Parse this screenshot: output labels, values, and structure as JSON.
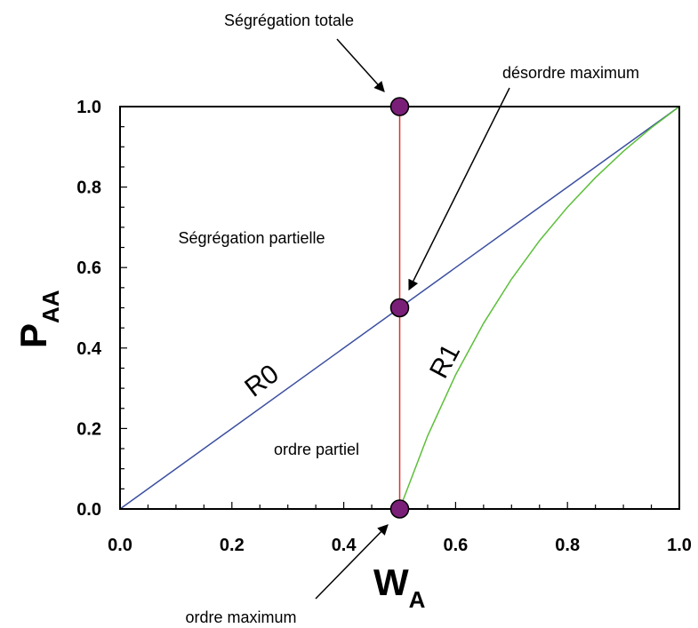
{
  "chart_data": {
    "type": "line",
    "xlabel": "W",
    "xlabel_sub": "A",
    "ylabel": "P",
    "ylabel_sub": "AA",
    "xlim": [
      0.0,
      1.0
    ],
    "ylim": [
      0.0,
      1.0
    ],
    "x_ticks": [
      0.0,
      0.2,
      0.4,
      0.6,
      0.8,
      1.0
    ],
    "x_tick_labels": [
      "0.0",
      "0.2",
      "0.4",
      "0.6",
      "0.8",
      "1.0"
    ],
    "y_ticks": [
      0.0,
      0.2,
      0.4,
      0.6,
      0.8,
      1.0
    ],
    "y_tick_labels": [
      "0.0",
      "0.2",
      "0.4",
      "0.6",
      "0.8",
      "1.0"
    ],
    "grid": false,
    "series": [
      {
        "name": "R0",
        "color": "#3b4fa0",
        "x": [
          0.0,
          1.0
        ],
        "y": [
          0.0,
          1.0
        ]
      },
      {
        "name": "R1",
        "color": "#5cbf3a",
        "x": [
          0.5,
          0.55,
          0.6,
          0.65,
          0.7,
          0.75,
          0.8,
          0.85,
          0.9,
          0.95,
          1.0
        ],
        "y": [
          0.0,
          0.1818,
          0.3333,
          0.4615,
          0.5714,
          0.6667,
          0.75,
          0.8235,
          0.8889,
          0.9474,
          1.0
        ]
      },
      {
        "color": "#e03030",
        "x": [
          0.5,
          0.5
        ],
        "y": [
          0.0,
          1.0
        ]
      }
    ],
    "points": [
      {
        "x": 0.5,
        "y": 1.0,
        "color": "#7a1f78"
      },
      {
        "x": 0.5,
        "y": 0.5,
        "color": "#7a1f78"
      },
      {
        "x": 0.5,
        "y": 0.0,
        "color": "#7a1f78"
      }
    ],
    "hatched_region": "between R1 and x = 1.0",
    "annotations": {
      "segregation_totale": "Ségrégation totale",
      "desordre_maximum": "désordre maximum",
      "segregation_partielle": "Ségrégation partielle",
      "ordre_partiel": "ordre partiel",
      "ordre_maximum": "ordre maximum"
    }
  }
}
